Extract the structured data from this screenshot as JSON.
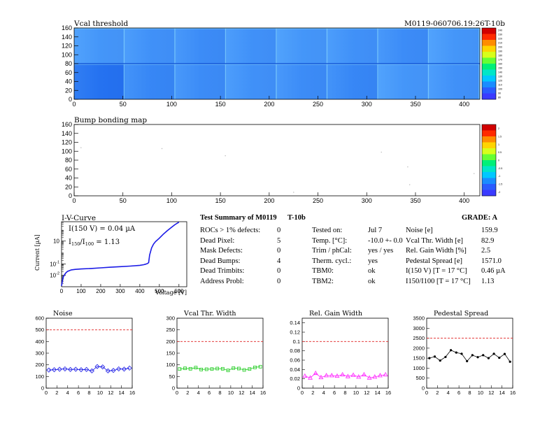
{
  "header": {
    "right_title": "M0119-060706.19:26T-10b"
  },
  "charts": {
    "vcal": {
      "title": "Vcal threshold",
      "xticks": [
        "0",
        "50",
        "100",
        "150",
        "200",
        "250",
        "300",
        "350",
        "400"
      ],
      "yticks": [
        "0",
        "20",
        "40",
        "60",
        "80",
        "100",
        "120",
        "140",
        "160"
      ],
      "palette_labels": [
        "80",
        "90",
        "100",
        "110",
        "120",
        "130",
        "140",
        "150",
        "160",
        "170",
        "180",
        "190",
        "200",
        "210",
        "220",
        "230",
        "240"
      ]
    },
    "bump": {
      "title": "Bump bonding map",
      "xticks": [
        "0",
        "50",
        "100",
        "150",
        "200",
        "250",
        "300",
        "350",
        "400"
      ],
      "yticks": [
        "0",
        "20",
        "40",
        "60",
        "80",
        "100",
        "120",
        "140",
        "160"
      ],
      "palette_labels": [
        "-2",
        "-1.5",
        "-1",
        "-0.5",
        "0",
        "0.5",
        "1",
        "1.5",
        "2"
      ]
    },
    "iv": {
      "title": "I-V-Curve",
      "xlabel": "Voltage [V]",
      "ylabel": "Current [µA]",
      "xticks": [
        "0",
        "100",
        "200",
        "300",
        "400",
        "500",
        "600"
      ],
      "note1": "I(150 V) = 0.04 µA",
      "note2_a": "I",
      "note2_sub1": "150",
      "note2_b": "/I",
      "note2_sub2": "100",
      "note2_c": " = 1.13"
    },
    "noise": {
      "title": "Noise",
      "xticks": [
        "0",
        "2",
        "4",
        "6",
        "8",
        "10",
        "12",
        "14",
        "16"
      ],
      "yticks": [
        "0",
        "100",
        "200",
        "300",
        "400",
        "500",
        "600"
      ]
    },
    "width": {
      "title": "Vcal Thr. Width",
      "xticks": [
        "0",
        "2",
        "4",
        "6",
        "8",
        "10",
        "12",
        "14",
        "16"
      ],
      "yticks": [
        "0",
        "50",
        "100",
        "150",
        "200",
        "250",
        "300"
      ]
    },
    "gain": {
      "title": "Rel. Gain Width",
      "xticks": [
        "0",
        "2",
        "4",
        "6",
        "8",
        "10",
        "12",
        "14",
        "16"
      ],
      "yticks": [
        "0",
        "0.02",
        "0.04",
        "0.06",
        "0.08",
        "0.1",
        "0.12",
        "0.14"
      ]
    },
    "ped": {
      "title": "Pedestal Spread",
      "xticks": [
        "0",
        "2",
        "4",
        "6",
        "8",
        "10",
        "12",
        "14",
        "16"
      ],
      "yticks": [
        "0",
        "500",
        "1000",
        "1500",
        "2000",
        "2500",
        "3000",
        "3500"
      ]
    }
  },
  "summary": {
    "title": "Test Summary of M0119",
    "title_b": "T-10b",
    "grade": "GRADE:  A",
    "left_rows": [
      {
        "label": "ROCs > 1% defects:",
        "value": "0"
      },
      {
        "label": "Dead Pixel:",
        "value": "5"
      },
      {
        "label": "Mask Defects:",
        "value": "0"
      },
      {
        "label": "Dead Bumps:",
        "value": "4"
      },
      {
        "label": "Dead Trimbits:",
        "value": "0"
      },
      {
        "label": "Address Probl:",
        "value": "0"
      }
    ],
    "mid_rows": [
      {
        "label": "Tested on:",
        "value": "Jul 7"
      },
      {
        "label": "Temp. [°C]:",
        "value": "-10.0 +- 0.0"
      },
      {
        "label": "Trim / phCal:",
        "value": "yes / yes"
      },
      {
        "label": "Therm. cycl.:",
        "value": "yes"
      },
      {
        "label": "TBM0:",
        "value": "ok"
      },
      {
        "label": "TBM2:",
        "value": "ok"
      }
    ],
    "right_rows": [
      {
        "label": "Noise [e]",
        "value": "159.9"
      },
      {
        "label": "Vcal Thr. Width [e]",
        "value": "82.9"
      },
      {
        "label": "Rel. Gain Width [%]",
        "value": "2.5"
      },
      {
        "label": "Pedestal Spread [e]",
        "value": "1571.0"
      },
      {
        "label": "I(150 V) [T = 17 °C]",
        "value": "0.46 µA"
      },
      {
        "label": "I150/I100  [T = 17 °C]",
        "value": "1.13"
      }
    ]
  },
  "chart_data": [
    {
      "type": "heatmap",
      "name": "vcal_threshold",
      "title": "Vcal threshold",
      "xlim": [
        0,
        416
      ],
      "ylim": [
        0,
        160
      ],
      "roc_grid": {
        "cols": 8,
        "rows": 2
      },
      "roc_mean_vcal_top": [
        118,
        116,
        114,
        116,
        118,
        116,
        114,
        118
      ],
      "roc_mean_vcal_bottom": [
        104,
        112,
        114,
        116,
        114,
        112,
        118,
        116
      ],
      "zlim": [
        80,
        240
      ]
    },
    {
      "type": "scatter",
      "name": "bump_bonding_map",
      "title": "Bump bonding map",
      "xlim": [
        0,
        416
      ],
      "ylim": [
        0,
        160
      ],
      "points": [
        [
          7,
          108
        ],
        [
          90,
          106
        ],
        [
          155,
          90
        ],
        [
          225,
          8
        ],
        [
          315,
          98
        ],
        [
          342,
          65
        ],
        [
          344,
          25
        ],
        [
          410,
          50
        ]
      ]
    },
    {
      "type": "line",
      "name": "iv_curve",
      "title": "I-V-Curve",
      "xlabel": "Voltage [V]",
      "ylabel": "Current [µA]",
      "ylog": true,
      "xlim": [
        0,
        640
      ],
      "ylim": [
        0.001,
        500
      ],
      "x": [
        0,
        5,
        10,
        20,
        30,
        50,
        70,
        100,
        150,
        200,
        250,
        300,
        350,
        400,
        420,
        430,
        440,
        445,
        450,
        460,
        470,
        480,
        500,
        520,
        540,
        560,
        580,
        600
      ],
      "y": [
        0.0012,
        0.004,
        0.008,
        0.015,
        0.022,
        0.03,
        0.033,
        0.036,
        0.04,
        0.045,
        0.051,
        0.057,
        0.064,
        0.075,
        0.085,
        0.095,
        0.11,
        0.13,
        0.6,
        2.5,
        5.5,
        9,
        18,
        40,
        80,
        150,
        280,
        450
      ]
    },
    {
      "type": "line",
      "name": "noise",
      "title": "Noise",
      "ylim": [
        0,
        600
      ],
      "xlim": [
        0,
        16
      ],
      "threshold": 500,
      "x": [
        0.5,
        1.5,
        2.5,
        3.5,
        4.5,
        5.5,
        6.5,
        7.5,
        8.5,
        9.5,
        10.5,
        11.5,
        12.5,
        13.5,
        14.5,
        15.5
      ],
      "values": [
        155,
        158,
        162,
        165,
        160,
        162,
        158,
        160,
        148,
        185,
        182,
        148,
        152,
        165,
        163,
        172
      ]
    },
    {
      "type": "line",
      "name": "vcal_thr_width",
      "title": "Vcal Thr. Width",
      "ylim": [
        0,
        300
      ],
      "xlim": [
        0,
        16
      ],
      "threshold": 200,
      "x": [
        0.5,
        1.5,
        2.5,
        3.5,
        4.5,
        5.5,
        6.5,
        7.5,
        8.5,
        9.5,
        10.5,
        11.5,
        12.5,
        13.5,
        14.5,
        15.5
      ],
      "values": [
        82,
        85,
        83,
        88,
        80,
        81,
        82,
        84,
        83,
        76,
        86,
        84,
        78,
        82,
        89,
        92
      ]
    },
    {
      "type": "line",
      "name": "rel_gain_width",
      "title": "Rel. Gain Width",
      "ylim": [
        0,
        0.15
      ],
      "xlim": [
        0,
        16
      ],
      "threshold": 0.1,
      "x": [
        0.5,
        1.5,
        2.5,
        3.5,
        4.5,
        5.5,
        6.5,
        7.5,
        8.5,
        9.5,
        10.5,
        11.5,
        12.5,
        13.5,
        14.5,
        15.5
      ],
      "values": [
        0.026,
        0.022,
        0.032,
        0.023,
        0.027,
        0.027,
        0.026,
        0.029,
        0.025,
        0.028,
        0.024,
        0.029,
        0.022,
        0.024,
        0.027,
        0.029
      ]
    },
    {
      "type": "line",
      "name": "pedestal_spread",
      "title": "Pedestal Spread",
      "ylim": [
        0,
        3500
      ],
      "xlim": [
        0,
        16
      ],
      "threshold": 2500,
      "x": [
        0.5,
        1.5,
        2.5,
        3.5,
        4.5,
        5.5,
        6.5,
        7.5,
        8.5,
        9.5,
        10.5,
        11.5,
        12.5,
        13.5,
        14.5,
        15.5
      ],
      "values": [
        1500,
        1580,
        1380,
        1560,
        1900,
        1780,
        1720,
        1350,
        1650,
        1550,
        1650,
        1500,
        1720,
        1520,
        1710,
        1320
      ]
    }
  ]
}
